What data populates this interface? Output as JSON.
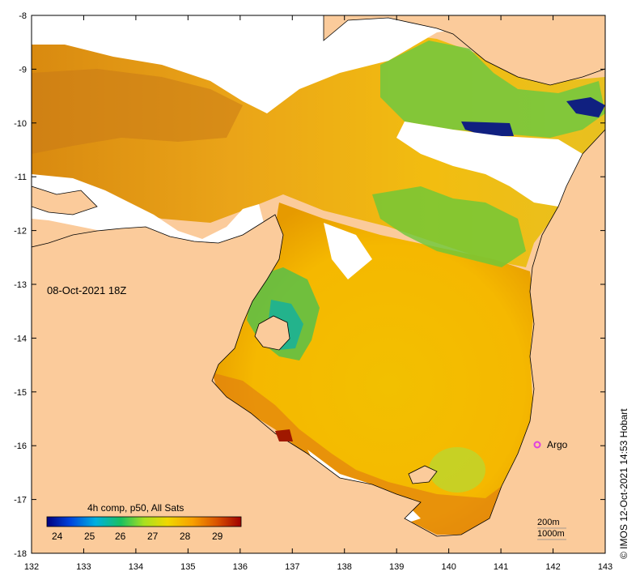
{
  "timestamp": "08-Oct-2021 18Z",
  "legend": {
    "title": "4h comp, p50, All Sats",
    "ticks": [
      "24",
      "25",
      "26",
      "27",
      "28",
      "29"
    ],
    "colors": [
      "#00007f",
      "#0044dd",
      "#00b0e0",
      "#18c060",
      "#a8e020",
      "#f0d800",
      "#f8a000",
      "#d85000",
      "#a00000"
    ]
  },
  "argo": {
    "label": "Argo",
    "color": "#e040e0"
  },
  "depth_contours": {
    "shallow": "200m",
    "deep": "1000m"
  },
  "credit": "IMOS 12-Oct-2021 14:53 Hobart",
  "copyright_symbol": "©",
  "axes": {
    "x_ticks": [
      "132",
      "133",
      "134",
      "135",
      "136",
      "137",
      "138",
      "139",
      "140",
      "141",
      "142",
      "143"
    ],
    "y_ticks": [
      "-8",
      "-9",
      "-10",
      "-11",
      "-12",
      "-13",
      "-14",
      "-15",
      "-16",
      "-17",
      "-18"
    ],
    "lon_range": [
      132,
      143
    ],
    "lat_range": [
      -18,
      -8
    ]
  },
  "colors": {
    "land": "#fbcb9b",
    "no_data": "#ffffff",
    "coast": "#000000"
  }
}
